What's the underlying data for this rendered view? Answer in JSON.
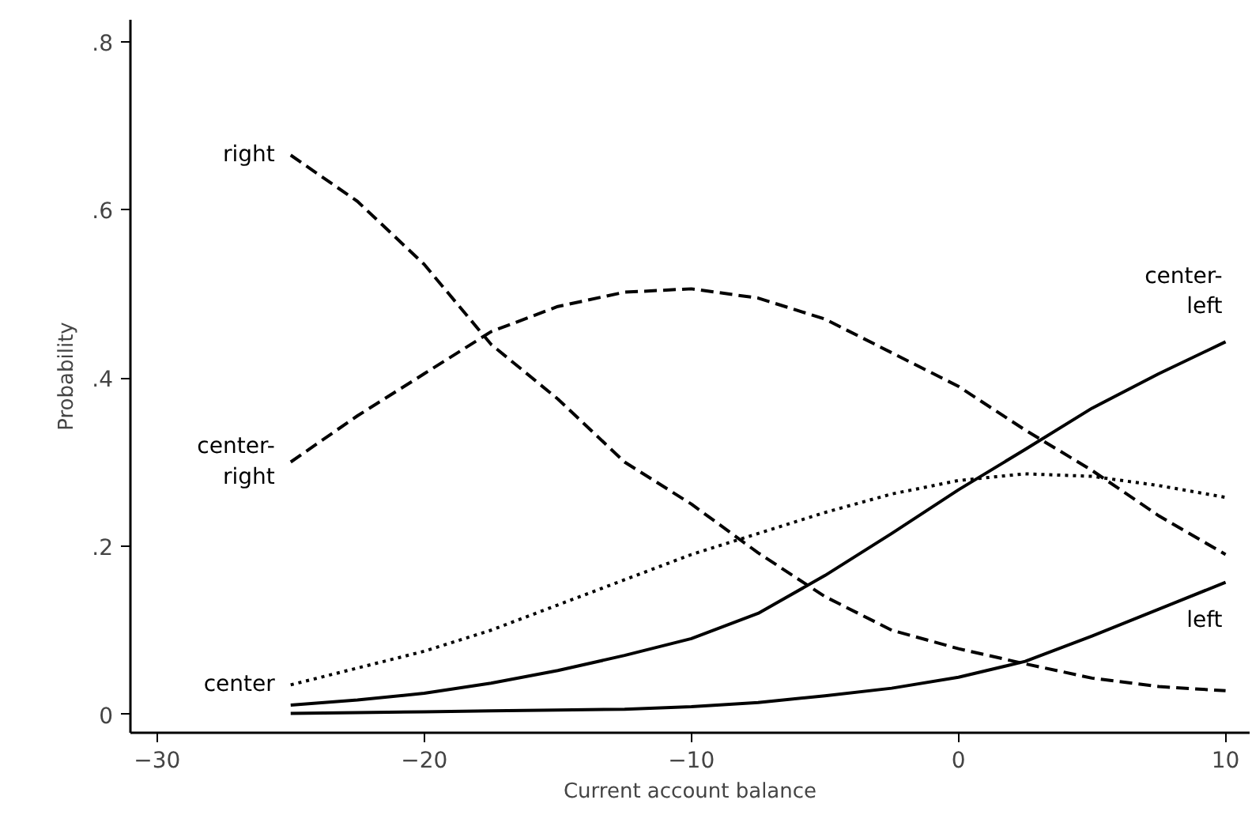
{
  "chart_data": {
    "type": "line",
    "xlabel": "Current account balance",
    "ylabel": "Probability",
    "x": [
      -25,
      -22.5,
      -20,
      -17.5,
      -15,
      -12.5,
      -10,
      -7.5,
      -5,
      -2.5,
      0,
      2.5,
      5,
      7.5,
      10
    ],
    "series": [
      {
        "name": "right",
        "color": "#000000",
        "line_style": "dashed",
        "values": [
          0.665,
          0.61,
          0.535,
          0.44,
          0.375,
          0.3,
          0.25,
          0.192,
          0.14,
          0.1,
          0.078,
          0.06,
          0.043,
          0.033,
          0.028
        ]
      },
      {
        "name": "center-right",
        "color": "#000000",
        "line_style": "dashed",
        "values": [
          0.3,
          0.355,
          0.405,
          0.455,
          0.485,
          0.502,
          0.506,
          0.495,
          0.47,
          0.43,
          0.39,
          0.338,
          0.29,
          0.236,
          0.19
        ]
      },
      {
        "name": "center",
        "color": "#000000",
        "line_style": "dotted",
        "values": [
          0.035,
          0.055,
          0.075,
          0.1,
          0.13,
          0.16,
          0.19,
          0.215,
          0.24,
          0.262,
          0.278,
          0.286,
          0.283,
          0.272,
          0.258
        ]
      },
      {
        "name": "center-left",
        "color": "#000000",
        "line_style": "solid",
        "values": [
          0.011,
          0.017,
          0.025,
          0.037,
          0.052,
          0.07,
          0.09,
          0.12,
          0.165,
          0.215,
          0.267,
          0.315,
          0.364,
          0.405,
          0.443
        ]
      },
      {
        "name": "left",
        "color": "#000000",
        "line_style": "solid",
        "values": [
          0.001,
          0.002,
          0.003,
          0.004,
          0.005,
          0.006,
          0.009,
          0.014,
          0.022,
          0.031,
          0.044,
          0.063,
          0.093,
          0.125,
          0.157
        ]
      }
    ],
    "xlim": [
      -31,
      10.9
    ],
    "ylim": [
      -0.022,
      0.826
    ],
    "xticks": [
      {
        "value": -30,
        "label": "−30"
      },
      {
        "value": -20,
        "label": "−20"
      },
      {
        "value": -10,
        "label": "−10"
      },
      0,
      10
    ],
    "yticks": [
      0,
      {
        "value": 0.2,
        "label": ".2"
      },
      {
        "value": 0.4,
        "label": ".4"
      },
      {
        "value": 0.6,
        "label": ".6"
      },
      {
        "value": 0.8,
        "label": ".8"
      }
    ],
    "grid": false,
    "marker": "none"
  }
}
